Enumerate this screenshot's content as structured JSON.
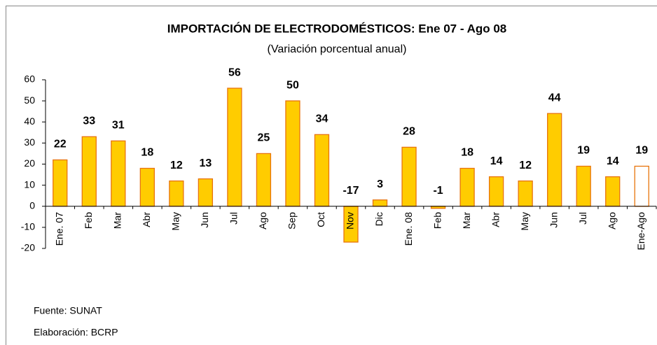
{
  "chart_data": {
    "type": "bar",
    "title": "IMPORTACIÓN DE ELECTRODOMÉSTICOS: Ene 07 - Ago 08",
    "subtitle": "(Variación porcentual anual)",
    "categories": [
      "Ene. 07",
      "Feb",
      "Mar",
      "Abr",
      "May",
      "Jun",
      "Jul",
      "Ago",
      "Sep",
      "Oct",
      "Nov",
      "Dic",
      "Ene. 08",
      "Feb",
      "Mar",
      "Abr",
      "May",
      "Jun",
      "Jul",
      "Ago",
      "Ene-Ago"
    ],
    "values": [
      22,
      33,
      31,
      18,
      12,
      13,
      56,
      25,
      50,
      34,
      -17,
      3,
      28,
      -1,
      18,
      14,
      12,
      44,
      19,
      14,
      19
    ],
    "colors": [
      "#FFCC00",
      "#FFCC00",
      "#FFCC00",
      "#FFCC00",
      "#FFCC00",
      "#FFCC00",
      "#FFCC00",
      "#FFCC00",
      "#FFCC00",
      "#FFCC00",
      "#FFCC00",
      "#FFCC00",
      "#FFCC00",
      "#FFCC00",
      "#FFCC00",
      "#FFCC00",
      "#FFCC00",
      "#FFCC00",
      "#FFCC00",
      "#FFCC00",
      "#FFFFFF"
    ],
    "edge_color": "#E8740C",
    "ylim": [
      -20,
      60
    ],
    "yticks": [
      -20,
      -10,
      0,
      10,
      20,
      30,
      40,
      50,
      60
    ],
    "grid": false,
    "notes": [
      "Fuente: SUNAT",
      "Elaboración: BCRP"
    ]
  }
}
